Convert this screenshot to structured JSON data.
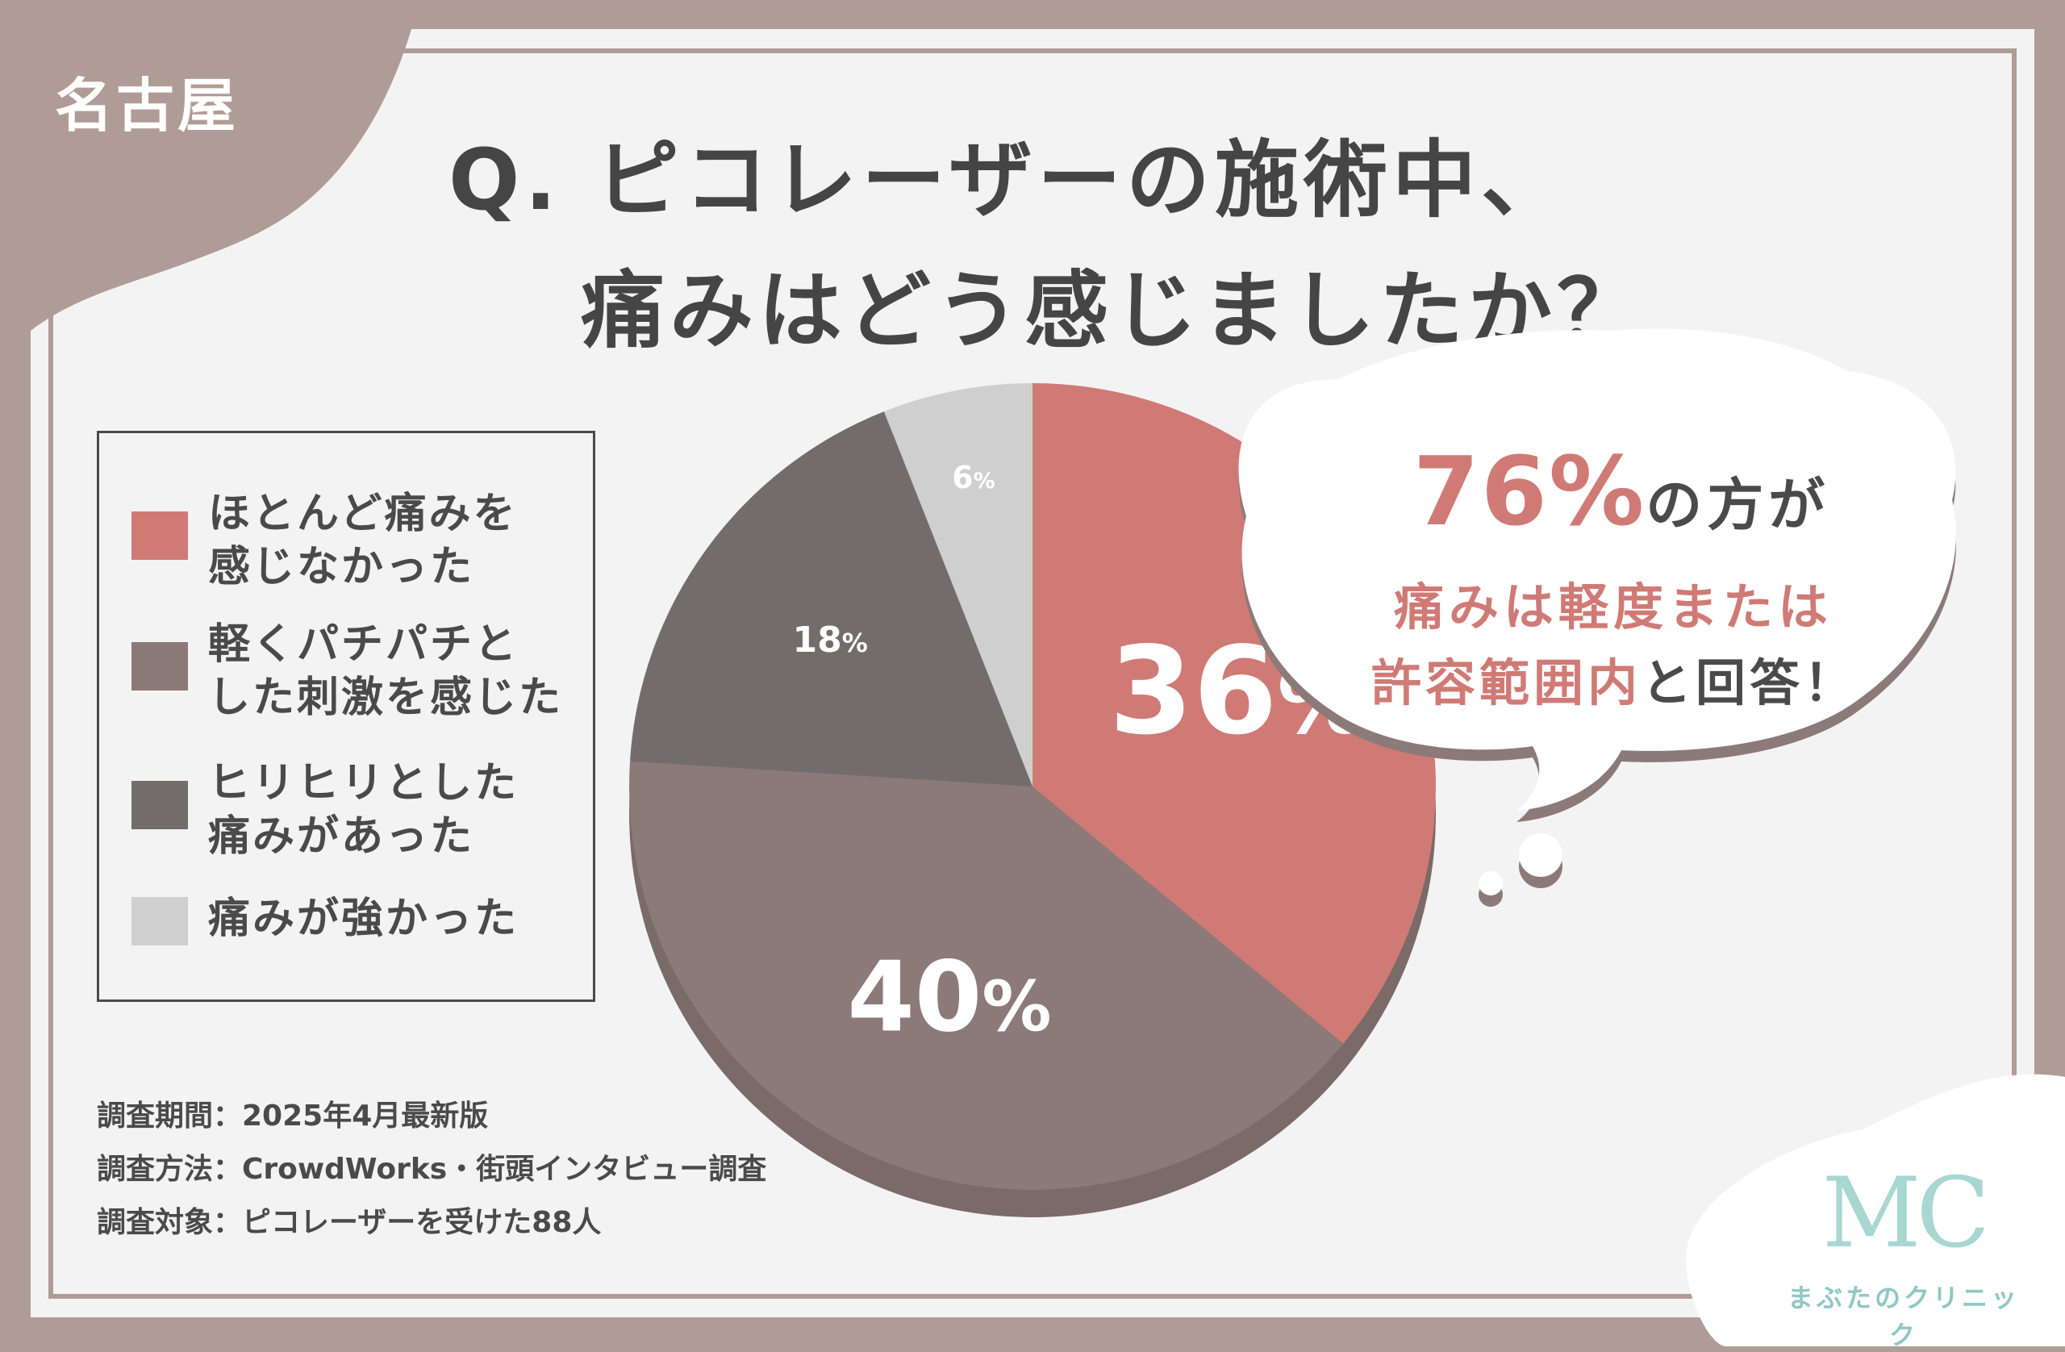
{
  "region_label": "名古屋",
  "title": {
    "line1": "Q. ピコレーザーの施術中、",
    "line2": "痛みはどう感じましたか？"
  },
  "colors": {
    "background": "#b09c96",
    "card": "#f4f3f3",
    "text": "#454545",
    "accent": "#d07a76"
  },
  "legend": [
    {
      "label": "ほとんど痛みを\n感じなかった",
      "color": "#d07a76"
    },
    {
      "label": "軽くパチパチと\nした刺激を感じた",
      "color": "#8c7a78"
    },
    {
      "label": "ヒリヒリとした\n痛みがあった",
      "color": "#726d6c"
    },
    {
      "label": "痛みが強かった",
      "color": "#cfcfcf"
    }
  ],
  "chart_data": {
    "type": "pie",
    "categories": [
      "ほとんど痛みを感じなかった",
      "軽くパチパチとした刺激を感じた",
      "ヒリヒリとした痛みがあった",
      "痛みが強かった"
    ],
    "values": [
      36,
      40,
      18,
      6
    ],
    "unit": "%",
    "colors": [
      "#d07a76",
      "#8c7a78",
      "#726d6c",
      "#cfcfcf"
    ],
    "data_labels": [
      "36%",
      "40%",
      "18%",
      "6%"
    ],
    "legend_position": "left"
  },
  "callout": {
    "highlight": "76%",
    "line1_rest": "の方が",
    "line2": "痛みは軽度または",
    "line3_accent": "許容範囲内",
    "line3_rest": "と回答！"
  },
  "notes": [
    "調査期間：2025年4月最新版",
    "調査方法：CrowdWorks・街頭インタビュー調査",
    "調査対象：ピコレーザーを受けた88人"
  ],
  "logo": {
    "mark": "MC",
    "name": "まぶたのクリニック"
  }
}
